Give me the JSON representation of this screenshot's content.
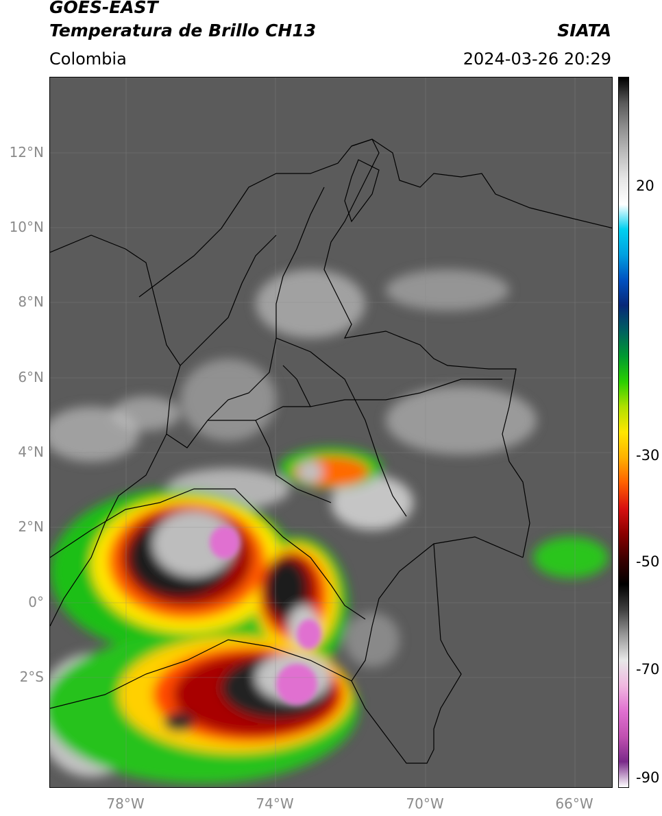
{
  "header": {
    "satellite": "GOES-EAST",
    "product": "Temperatura de Brillo CH13",
    "region": "Colombia",
    "institution": "SIATA",
    "datetime": "2024-03-26 20:29"
  },
  "map": {
    "lat_labels": [
      "12°N",
      "10°N",
      "8°N",
      "6°N",
      "4°N",
      "2°N",
      "0°",
      "2°S"
    ],
    "lon_labels": [
      "78°W",
      "74°W",
      "70°W",
      "66°W"
    ]
  },
  "colorbar": {
    "labels": [
      "20",
      "-30",
      "-50",
      "-70",
      "-90"
    ],
    "stops": [
      "#ffffff",
      "#7a2a8a",
      "#c050b0",
      "#e070d0",
      "#f0b8e0",
      "#e8e8e8",
      "#999999",
      "#404040",
      "#000000",
      "#3a0000",
      "#8a0000",
      "#d81010",
      "#ff6000",
      "#ffb000",
      "#ffe600",
      "#b0e000",
      "#2ad000",
      "#009a30",
      "#006060",
      "#082878",
      "#0050c0",
      "#00a0e0",
      "#00d0f0",
      "#ffffff",
      "#e6e6e6",
      "#bdbdbd",
      "#8f8f8f",
      "#5a5a5a",
      "#000000"
    ]
  }
}
